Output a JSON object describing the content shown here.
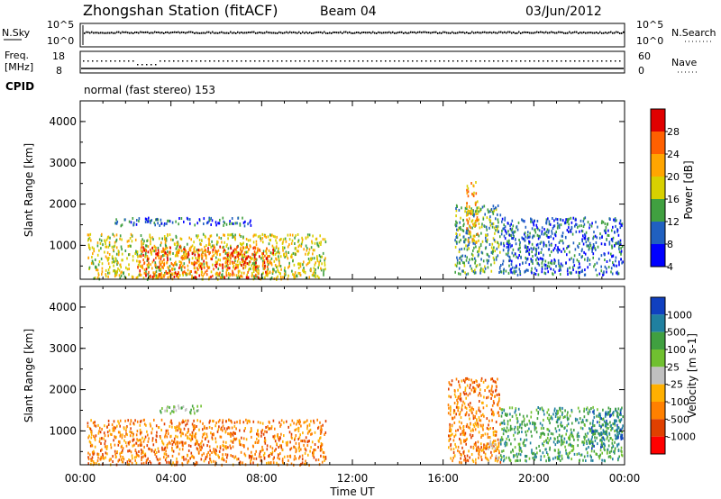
{
  "header": {
    "station": "Zhongshan Station (fitACF)",
    "beam": "Beam 04",
    "date": "03/Jun/2012"
  },
  "panels": {
    "nsky": {
      "label": "N.Sky",
      "tick_top": "10^5",
      "tick_bottom": "10^0",
      "right_top": "10^5",
      "right_bottom": "10^0",
      "right_label": "N.Search"
    },
    "freq": {
      "label_top": "Freq.",
      "label_bottom": "[MHz]",
      "tick_top": "18",
      "tick_bottom": "8",
      "right_top": "60",
      "right_bottom": "0",
      "right_label": "Nave"
    },
    "cpid": {
      "label": "CPID",
      "text": "normal (fast stereo) 153"
    }
  },
  "chart_data": [
    {
      "type": "heatmap",
      "name": "Power",
      "ylabel": "Slant Range [km]",
      "xlabel": "",
      "x_range_hours": [
        0,
        24
      ],
      "ylim": [
        180,
        4500
      ],
      "yticks": [
        "1000",
        "2000",
        "3000",
        "4000"
      ],
      "colorbar": {
        "label": "Power [dB]",
        "ticks": [
          "28",
          "24",
          "20",
          "16",
          "12",
          "8",
          "4"
        ],
        "colors": [
          "#e00000",
          "#ff6000",
          "#ffa500",
          "#d8d000",
          "#40a040",
          "#2060c0",
          "#0000ff"
        ]
      },
      "blobs": [
        {
          "t0": 0.3,
          "t1": 10.8,
          "r0": 200,
          "r1": 1300,
          "level": 16
        },
        {
          "t0": 2.5,
          "t1": 8.5,
          "r0": 250,
          "r1": 1000,
          "level": 24
        },
        {
          "t0": 1.5,
          "t1": 7.5,
          "r0": 1500,
          "r1": 1700,
          "level": 8
        },
        {
          "t0": 16.5,
          "t1": 18.5,
          "r0": 300,
          "r1": 2000,
          "level": 12
        },
        {
          "t0": 17.0,
          "t1": 17.5,
          "r0": 1000,
          "r1": 2600,
          "level": 20
        },
        {
          "t0": 18.5,
          "t1": 23.9,
          "r0": 300,
          "r1": 1700,
          "level": 8
        }
      ]
    },
    {
      "type": "heatmap",
      "name": "Velocity",
      "ylabel": "Slant Range [km]",
      "xlabel": "Time UT",
      "x_range_hours": [
        0,
        24
      ],
      "ylim": [
        180,
        4500
      ],
      "yticks": [
        "1000",
        "2000",
        "3000",
        "4000"
      ],
      "xticks": [
        "00:00",
        "04:00",
        "08:00",
        "12:00",
        "16:00",
        "20:00",
        "00:00"
      ],
      "colorbar": {
        "label": "Velocity [m s-1]",
        "ticks": [
          "1000",
          "500",
          "100",
          "25",
          "-25",
          "-100",
          "-500",
          "-1000"
        ],
        "colors": [
          "#1040c0",
          "#2080a0",
          "#40a040",
          "#70c030",
          "#c0c0c0",
          "#ffb000",
          "#ff8000",
          "#e04000",
          "#ff0000"
        ]
      },
      "blobs": [
        {
          "t0": 0.3,
          "t1": 10.8,
          "r0": 200,
          "r1": 1300,
          "level": -500
        },
        {
          "t0": 3.5,
          "t1": 5.5,
          "r0": 1450,
          "r1": 1650,
          "level": 25
        },
        {
          "t0": 16.2,
          "t1": 18.5,
          "r0": 250,
          "r1": 2300,
          "level": -500
        },
        {
          "t0": 17.8,
          "t1": 18.4,
          "r0": 300,
          "r1": 800,
          "level": -100
        },
        {
          "t0": 18.5,
          "t1": 23.9,
          "r0": 300,
          "r1": 1600,
          "level": 100
        },
        {
          "t0": 22.5,
          "t1": 23.9,
          "r0": 600,
          "r1": 1500,
          "level": 500
        }
      ]
    }
  ]
}
